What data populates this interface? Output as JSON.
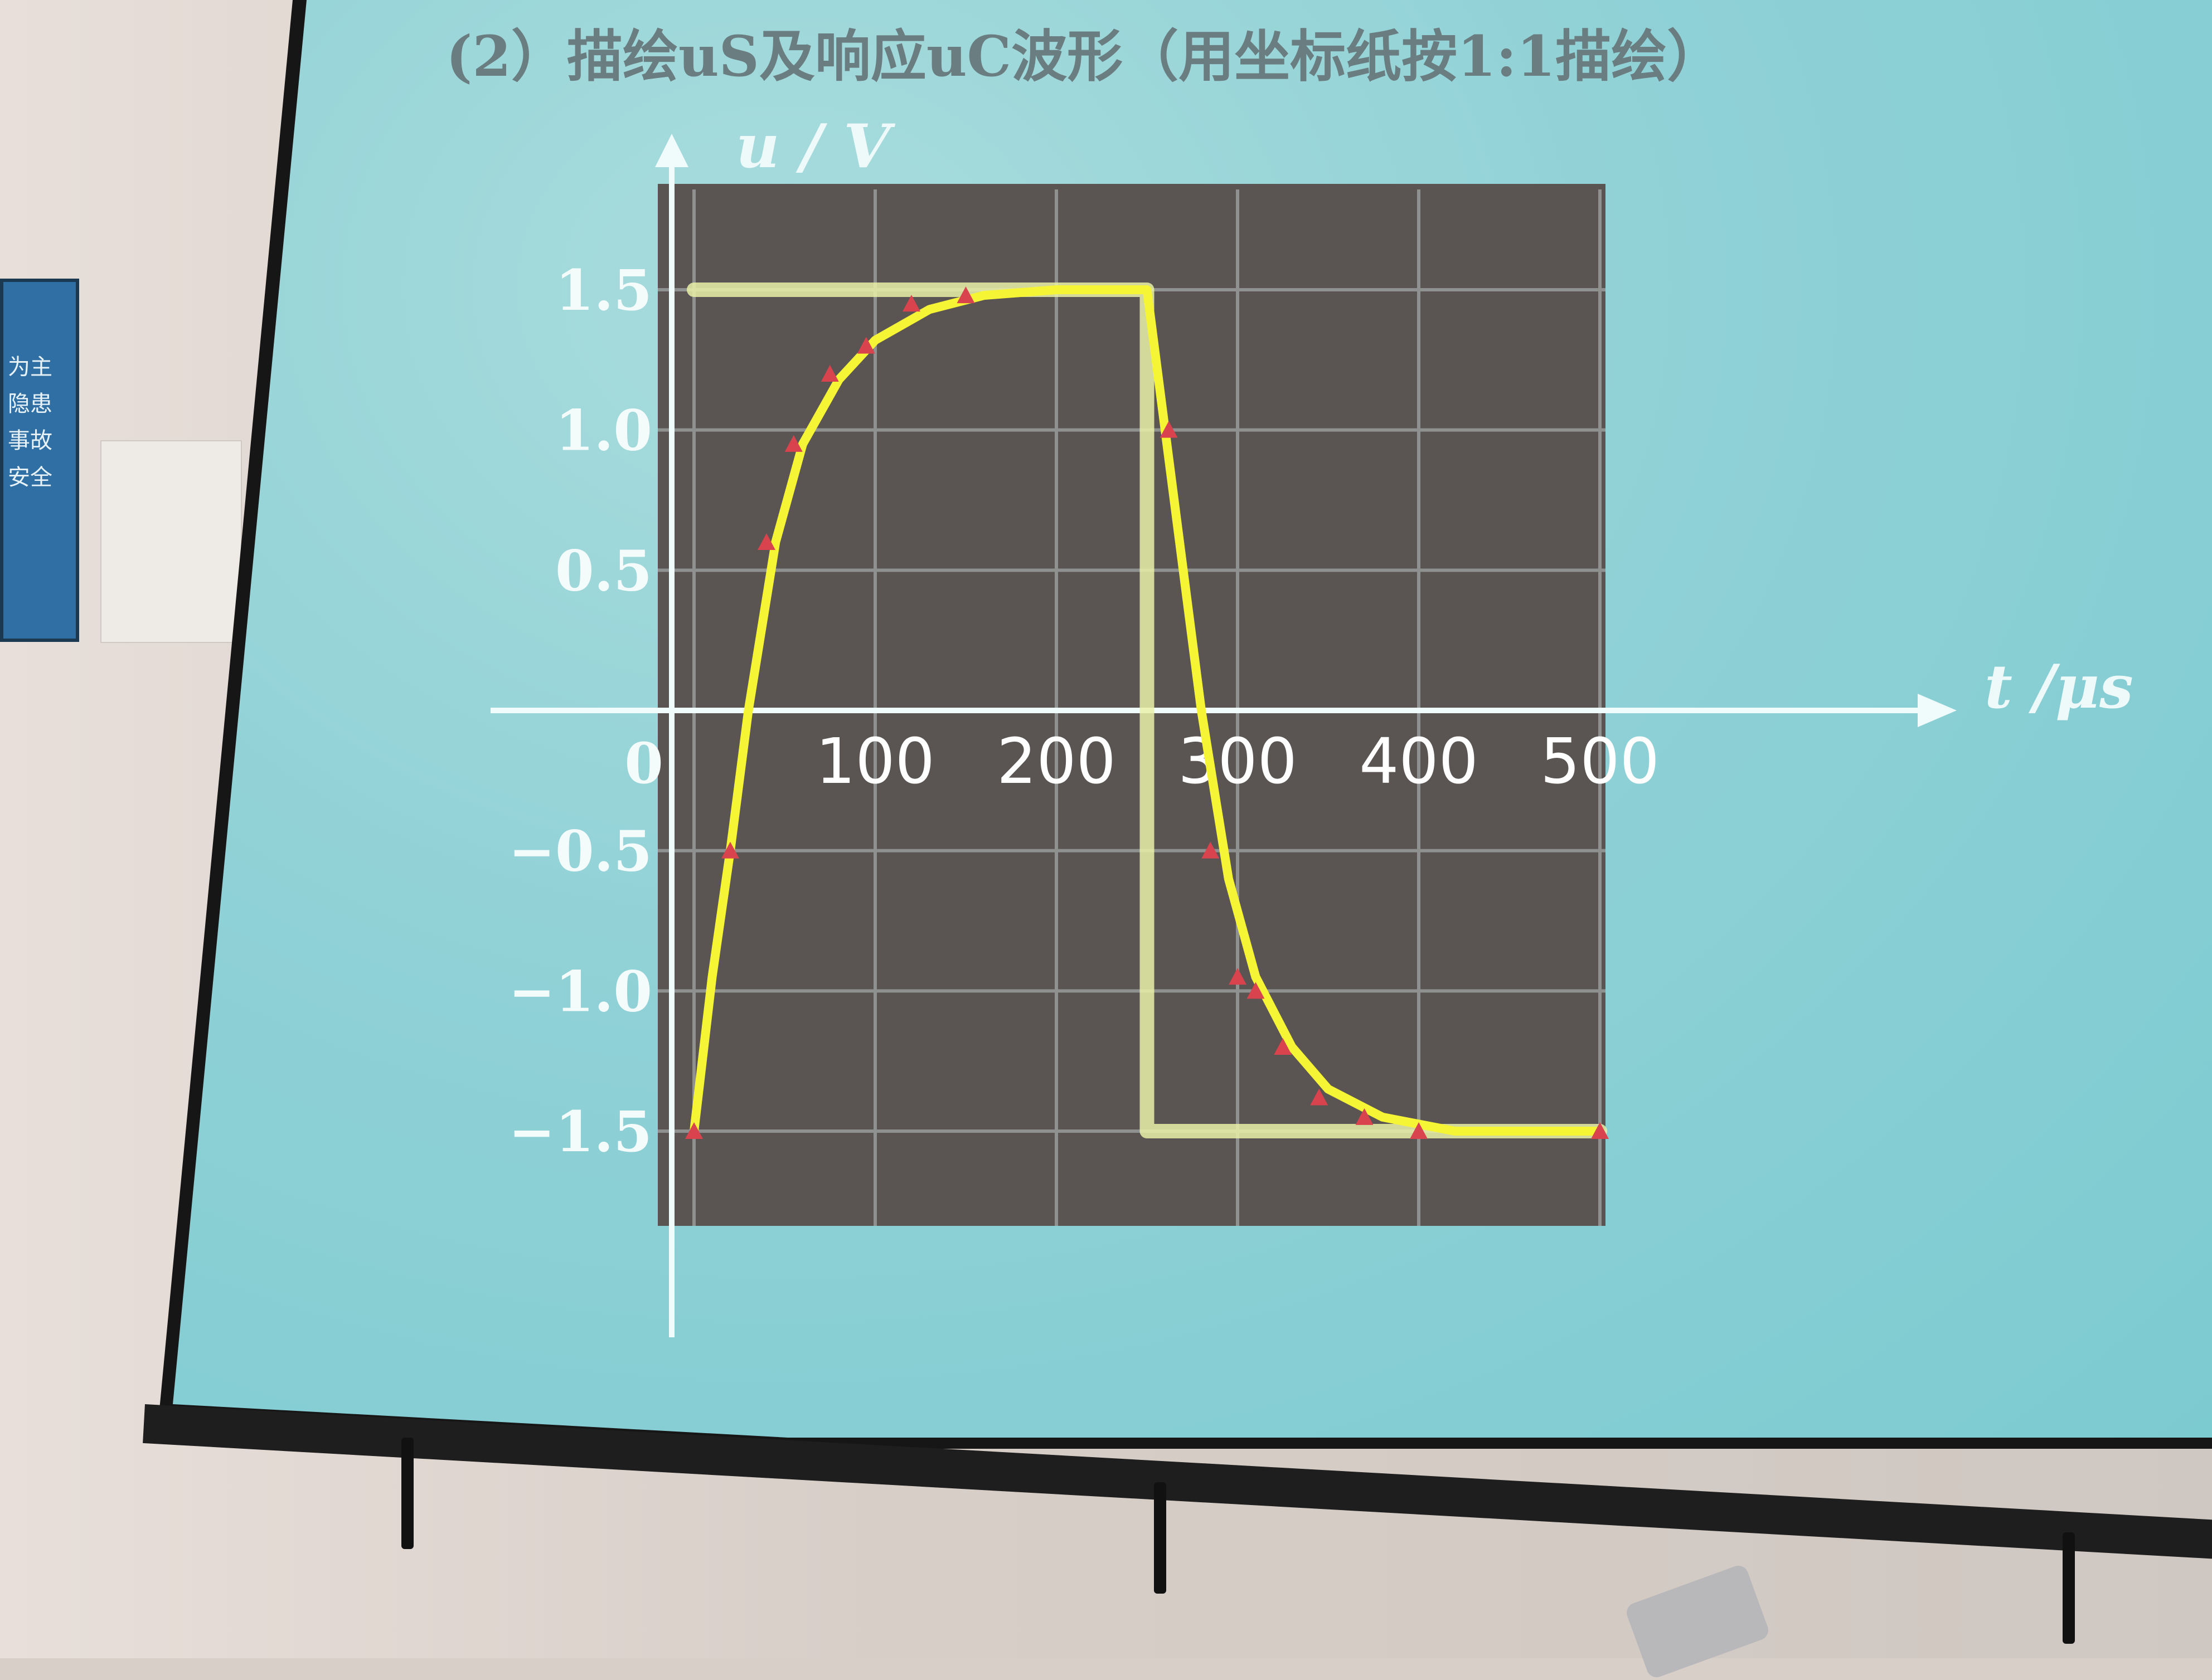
{
  "slide": {
    "title": "(2）描绘uS及响应uC波形（用坐标纸按1:1描绘）"
  },
  "poster": {
    "lines": [
      "为主",
      "隐患",
      "事故",
      "安全"
    ]
  },
  "chart_data": {
    "type": "line",
    "ylabel": "u / V",
    "xlabel": "t /μs",
    "xlim": [
      0,
      500
    ],
    "ylim": [
      -1.5,
      1.5
    ],
    "x_ticks": [
      "0",
      "100",
      "200",
      "300",
      "400",
      "500"
    ],
    "y_ticks": [
      "1.5",
      "1.0",
      "0.5",
      "-0.5",
      "-1.0",
      "-1.5"
    ],
    "grid": true,
    "series": [
      {
        "name": "uS",
        "color": "#e9f0a8",
        "points": [
          [
            0,
            1.5
          ],
          [
            250,
            1.5
          ],
          [
            250,
            -1.5
          ],
          [
            500,
            -1.5
          ]
        ]
      },
      {
        "name": "uC",
        "color": "#f5f536",
        "points": [
          [
            0,
            -1.5
          ],
          [
            10,
            -0.95
          ],
          [
            20,
            -0.5
          ],
          [
            30,
            0.0
          ],
          [
            45,
            0.6
          ],
          [
            60,
            0.95
          ],
          [
            80,
            1.18
          ],
          [
            100,
            1.32
          ],
          [
            130,
            1.43
          ],
          [
            160,
            1.48
          ],
          [
            200,
            1.5
          ],
          [
            250,
            1.5
          ],
          [
            260,
            1.0
          ],
          [
            270,
            0.5
          ],
          [
            280,
            0.0
          ],
          [
            295,
            -0.6
          ],
          [
            310,
            -0.95
          ],
          [
            330,
            -1.2
          ],
          [
            350,
            -1.35
          ],
          [
            380,
            -1.45
          ],
          [
            420,
            -1.5
          ],
          [
            500,
            -1.5
          ]
        ]
      }
    ],
    "markers": {
      "color": "#d8434d",
      "points": [
        [
          0,
          -1.5
        ],
        [
          20,
          -0.5
        ],
        [
          40,
          0.6
        ],
        [
          55,
          0.95
        ],
        [
          75,
          1.2
        ],
        [
          95,
          1.3
        ],
        [
          120,
          1.45
        ],
        [
          150,
          1.48
        ],
        [
          262,
          1.0
        ],
        [
          285,
          -0.5
        ],
        [
          300,
          -0.95
        ],
        [
          310,
          -1.0
        ],
        [
          325,
          -1.2
        ],
        [
          345,
          -1.38
        ],
        [
          370,
          -1.45
        ],
        [
          400,
          -1.5
        ],
        [
          500,
          -1.5
        ]
      ]
    }
  }
}
